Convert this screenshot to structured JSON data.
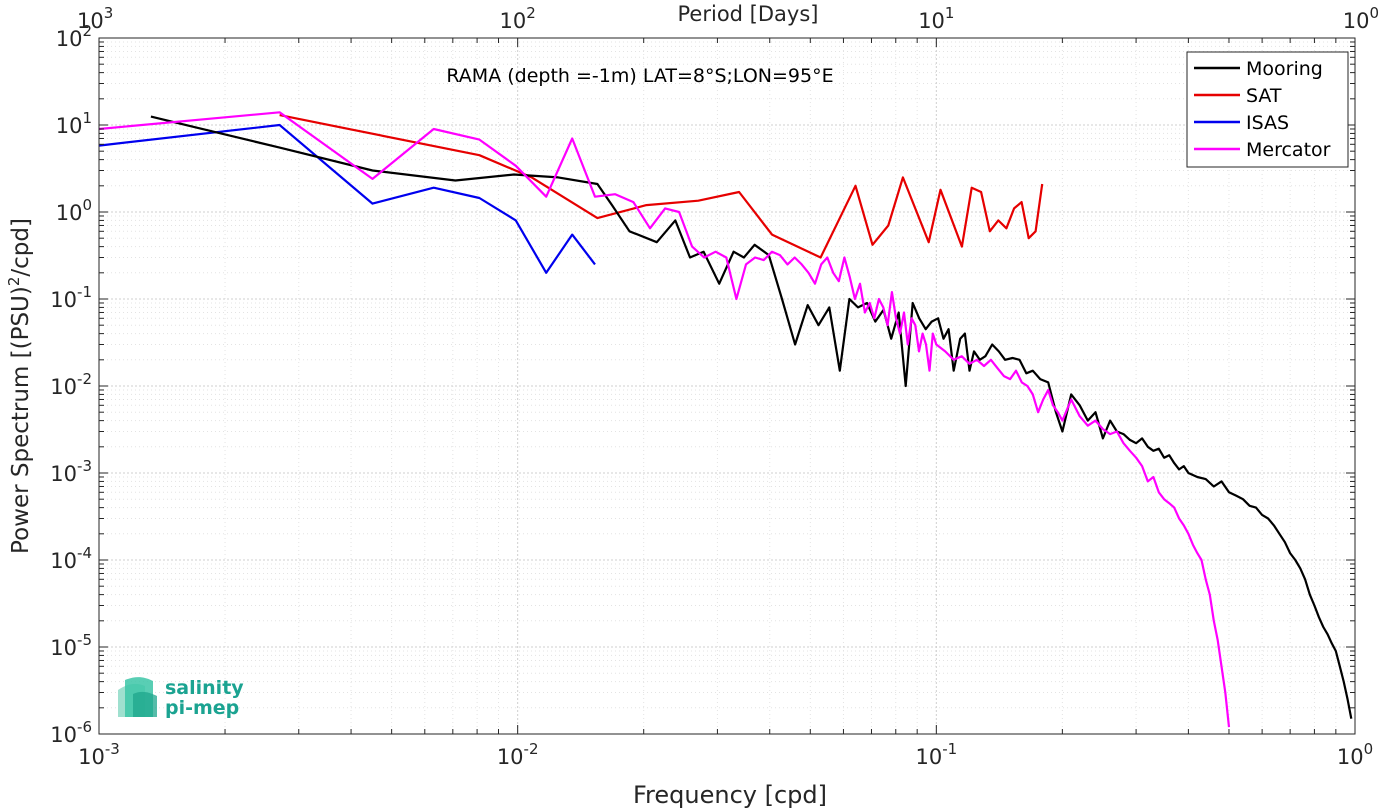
{
  "chart_data": {
    "type": "line",
    "title": "RAMA (depth =-1m) LAT=8°S;LON=95°E",
    "xlabel": "Frequency [cpd]",
    "ylabel": "Power Spectrum [(PSU)",
    "ylabel_sup": "2",
    "ylabel_tail": "/cpd]",
    "top_xlabel": "Period [Days]",
    "xscale": "log",
    "yscale": "log",
    "xlim": [
      0.001,
      1
    ],
    "ylim": [
      1e-06,
      100
    ],
    "grid": true,
    "legend_position": "top-right",
    "x_ticks": [
      {
        "value": 0.001,
        "base": "10",
        "exp": "-3"
      },
      {
        "value": 0.01,
        "base": "10",
        "exp": "-2"
      },
      {
        "value": 0.1,
        "base": "10",
        "exp": "-1"
      },
      {
        "value": 1,
        "base": "10",
        "exp": "0"
      }
    ],
    "y_ticks": [
      {
        "value": 100,
        "base": "10",
        "exp": "2"
      },
      {
        "value": 10,
        "base": "10",
        "exp": "1"
      },
      {
        "value": 1,
        "base": "10",
        "exp": "0"
      },
      {
        "value": 0.1,
        "base": "10",
        "exp": "-1"
      },
      {
        "value": 0.01,
        "base": "10",
        "exp": "-2"
      },
      {
        "value": 0.001,
        "base": "10",
        "exp": "-3"
      },
      {
        "value": 0.0001,
        "base": "10",
        "exp": "-4"
      },
      {
        "value": 1e-05,
        "base": "10",
        "exp": "-5"
      },
      {
        "value": 1e-06,
        "base": "10",
        "exp": "-6"
      }
    ],
    "top_ticks": [
      {
        "period": 1000,
        "base": "10",
        "exp": "3"
      },
      {
        "period": 100,
        "base": "10",
        "exp": "2"
      },
      {
        "period": 10,
        "base": "10",
        "exp": "1"
      },
      {
        "period": 1,
        "base": "10",
        "exp": "0"
      }
    ],
    "series": [
      {
        "name": "Mooring",
        "color": "#000000",
        "x": [
          0.00133,
          0.0027,
          0.0045,
          0.0071,
          0.0098,
          0.0125,
          0.0155,
          0.0168,
          0.0185,
          0.0215,
          0.0238,
          0.0258,
          0.0278,
          0.0303,
          0.0328,
          0.0347,
          0.0368,
          0.0398,
          0.0428,
          0.046,
          0.0493,
          0.0523,
          0.0555,
          0.0588,
          0.062,
          0.065,
          0.0683,
          0.0715,
          0.0748,
          0.078,
          0.0813,
          0.0845,
          0.0878,
          0.091,
          0.0943,
          0.0975,
          0.101,
          0.104,
          0.107,
          0.11,
          0.114,
          0.117,
          0.12,
          0.123,
          0.127,
          0.131,
          0.136,
          0.141,
          0.146,
          0.152,
          0.158,
          0.164,
          0.17,
          0.177,
          0.185,
          0.193,
          0.2,
          0.21,
          0.22,
          0.23,
          0.24,
          0.25,
          0.26,
          0.27,
          0.28,
          0.29,
          0.3,
          0.31,
          0.32,
          0.33,
          0.34,
          0.35,
          0.36,
          0.37,
          0.38,
          0.39,
          0.4,
          0.42,
          0.44,
          0.46,
          0.48,
          0.5,
          0.52,
          0.54,
          0.56,
          0.58,
          0.6,
          0.62,
          0.64,
          0.66,
          0.68,
          0.7,
          0.72,
          0.74,
          0.76,
          0.78,
          0.8,
          0.82,
          0.84,
          0.86,
          0.88,
          0.9,
          0.92,
          0.94,
          0.96,
          0.98
        ],
        "y": [
          12.5,
          5.5,
          3.0,
          2.3,
          2.7,
          2.5,
          2.1,
          1.2,
          0.6,
          0.45,
          0.8,
          0.3,
          0.35,
          0.15,
          0.35,
          0.3,
          0.42,
          0.32,
          0.1,
          0.03,
          0.085,
          0.05,
          0.08,
          0.015,
          0.1,
          0.08,
          0.09,
          0.055,
          0.075,
          0.035,
          0.07,
          0.01,
          0.09,
          0.06,
          0.045,
          0.055,
          0.06,
          0.035,
          0.045,
          0.015,
          0.035,
          0.04,
          0.015,
          0.025,
          0.02,
          0.022,
          0.03,
          0.025,
          0.02,
          0.021,
          0.02,
          0.014,
          0.015,
          0.012,
          0.011,
          0.005,
          0.003,
          0.008,
          0.006,
          0.004,
          0.005,
          0.0025,
          0.004,
          0.003,
          0.0028,
          0.0024,
          0.0022,
          0.0025,
          0.002,
          0.0018,
          0.0019,
          0.0015,
          0.0016,
          0.0013,
          0.0011,
          0.0012,
          0.001,
          0.0009,
          0.00085,
          0.0007,
          0.0008,
          0.0006,
          0.00055,
          0.0005,
          0.00042,
          0.0004,
          0.00033,
          0.0003,
          0.00025,
          0.0002,
          0.00016,
          0.00012,
          0.0001,
          8e-05,
          6e-05,
          4e-05,
          3e-05,
          2.2e-05,
          1.7e-05,
          1.4e-05,
          1.1e-05,
          9e-06,
          6e-06,
          4e-06,
          2.5e-06,
          1.5e-06
        ]
      },
      {
        "name": "SAT",
        "color": "#e60000",
        "x": [
          0.0027,
          0.0081,
          0.0108,
          0.0155,
          0.0203,
          0.027,
          0.0338,
          0.0405,
          0.0529,
          0.0641,
          0.0704,
          0.0768,
          0.0832,
          0.0959,
          0.1023,
          0.1151,
          0.1215,
          0.1279,
          0.1342,
          0.1406,
          0.147,
          0.1534,
          0.1598,
          0.1662,
          0.1726,
          0.179
        ],
        "y": [
          13.0,
          4.5,
          2.5,
          0.85,
          1.2,
          1.35,
          1.7,
          0.55,
          0.3,
          2.0,
          0.42,
          0.7,
          2.5,
          0.45,
          1.8,
          0.4,
          1.9,
          1.7,
          0.6,
          0.8,
          0.65,
          1.1,
          1.3,
          0.5,
          0.6,
          2.1
        ]
      },
      {
        "name": "ISAS",
        "color": "#0000ee",
        "x": [
          0.001,
          0.0027,
          0.0045,
          0.0063,
          0.0081,
          0.0099,
          0.0117,
          0.0135,
          0.0153
        ],
        "y": [
          5.8,
          10.0,
          1.25,
          1.9,
          1.45,
          0.8,
          0.2,
          0.55,
          0.25
        ]
      },
      {
        "name": "Mercator",
        "color": "#ff00ff",
        "x": [
          0.001,
          0.0027,
          0.0045,
          0.0063,
          0.0081,
          0.0099,
          0.0117,
          0.0135,
          0.0153,
          0.0171,
          0.0189,
          0.0207,
          0.0225,
          0.0243,
          0.0261,
          0.0279,
          0.0297,
          0.0315,
          0.0333,
          0.0351,
          0.0369,
          0.0387,
          0.0405,
          0.0423,
          0.0441,
          0.0459,
          0.0477,
          0.0495,
          0.0513,
          0.0531,
          0.0549,
          0.0567,
          0.0585,
          0.0603,
          0.0621,
          0.0639,
          0.0657,
          0.0675,
          0.0693,
          0.0711,
          0.0729,
          0.0747,
          0.0765,
          0.0783,
          0.0801,
          0.0819,
          0.0837,
          0.0855,
          0.0873,
          0.0891,
          0.0909,
          0.0927,
          0.0945,
          0.0963,
          0.0981,
          0.1,
          0.105,
          0.11,
          0.115,
          0.12,
          0.125,
          0.13,
          0.135,
          0.14,
          0.145,
          0.15,
          0.155,
          0.16,
          0.165,
          0.17,
          0.175,
          0.18,
          0.185,
          0.19,
          0.195,
          0.2,
          0.21,
          0.22,
          0.23,
          0.24,
          0.25,
          0.26,
          0.27,
          0.28,
          0.29,
          0.3,
          0.31,
          0.32,
          0.33,
          0.34,
          0.35,
          0.36,
          0.37,
          0.38,
          0.39,
          0.4,
          0.41,
          0.42,
          0.43,
          0.44,
          0.45,
          0.46,
          0.47,
          0.48,
          0.49,
          0.5
        ],
        "y": [
          9.0,
          14.0,
          2.4,
          9.0,
          6.8,
          3.4,
          1.5,
          7.0,
          1.5,
          1.6,
          1.3,
          0.65,
          1.1,
          1.0,
          0.4,
          0.3,
          0.35,
          0.3,
          0.1,
          0.25,
          0.3,
          0.28,
          0.35,
          0.32,
          0.25,
          0.3,
          0.25,
          0.2,
          0.15,
          0.25,
          0.3,
          0.2,
          0.16,
          0.3,
          0.18,
          0.1,
          0.15,
          0.07,
          0.09,
          0.06,
          0.1,
          0.08,
          0.05,
          0.12,
          0.06,
          0.04,
          0.07,
          0.03,
          0.06,
          0.05,
          0.025,
          0.04,
          0.03,
          0.015,
          0.04,
          0.03,
          0.025,
          0.02,
          0.022,
          0.018,
          0.02,
          0.017,
          0.02,
          0.016,
          0.013,
          0.012,
          0.015,
          0.011,
          0.01,
          0.008,
          0.005,
          0.007,
          0.009,
          0.006,
          0.005,
          0.004,
          0.007,
          0.0045,
          0.0035,
          0.004,
          0.0032,
          0.0028,
          0.003,
          0.0022,
          0.0018,
          0.0015,
          0.0012,
          0.0008,
          0.0009,
          0.0006,
          0.0005,
          0.00045,
          0.0004,
          0.0003,
          0.00025,
          0.0002,
          0.00015,
          0.00012,
          0.0001,
          6e-05,
          4e-05,
          2e-05,
          1.2e-05,
          6e-06,
          3e-06,
          1.2e-06
        ]
      }
    ]
  },
  "logo": {
    "line1": "salinity",
    "line2": "pi-mep"
  }
}
